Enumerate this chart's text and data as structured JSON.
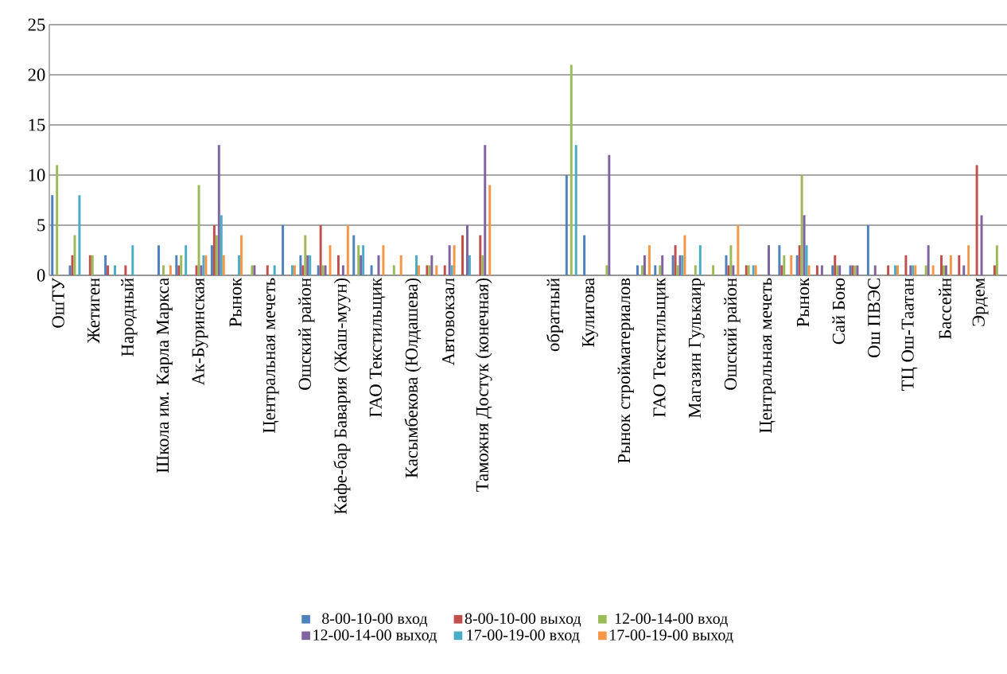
{
  "chart_data": {
    "type": "bar",
    "categories": [
      "ОшТУ",
      null,
      "Жетиген",
      null,
      "Народный",
      null,
      "Школа им. Карла Маркса",
      null,
      "Ак-Буринская",
      null,
      "Рынок",
      null,
      "Центральная мечеть",
      null,
      "Ошский район",
      null,
      "Кафе-бар Бавария (Жаш-муун)",
      null,
      "ГАО Текстильщик",
      null,
      "Касымбекова (Юлдашева)",
      null,
      "Автовокзал",
      null,
      "Таможня Достук (конечная)",
      null,
      null,
      null,
      "обратный",
      null,
      "Кулигова",
      null,
      "Рынок стройматериалов",
      null,
      "ГАО Текстильщик",
      null,
      "Магазин Гулькаир",
      null,
      "Ошский район",
      null,
      "Центральная мечеть",
      null,
      "Рынок",
      null,
      "Сай Бою",
      null,
      "Ош ПВЭС",
      null,
      "ТЦ Ош-Таатан",
      null,
      "Бассейн",
      null,
      "Эрдем",
      null
    ],
    "series": [
      {
        "name": "8-00-10-00 вход",
        "color": "#4f81bd",
        "values": [
          8,
          1,
          null,
          2,
          null,
          null,
          3,
          2,
          null,
          3,
          null,
          null,
          null,
          5,
          2,
          1,
          null,
          4,
          1,
          null,
          null,
          null,
          null,
          null,
          null,
          null,
          null,
          null,
          null,
          10,
          4,
          null,
          null,
          1,
          1,
          2,
          null,
          null,
          2,
          null,
          null,
          3,
          2,
          null,
          1,
          1,
          5,
          null,
          null,
          null,
          null,
          null,
          null,
          null
        ]
      },
      {
        "name": "8-00-10-00 выход",
        "color": "#c0504d",
        "values": [
          null,
          2,
          2,
          1,
          1,
          null,
          null,
          1,
          1,
          5,
          null,
          null,
          1,
          null,
          1,
          5,
          2,
          null,
          null,
          null,
          null,
          1,
          1,
          4,
          4,
          null,
          null,
          null,
          null,
          null,
          null,
          null,
          null,
          null,
          null,
          3,
          null,
          null,
          1,
          1,
          null,
          1,
          3,
          1,
          2,
          1,
          null,
          1,
          2,
          null,
          2,
          2,
          11,
          1
        ]
      },
      {
        "name": "12-00-14-00 вход",
        "color": "#9bbb59",
        "values": [
          11,
          4,
          2,
          null,
          null,
          null,
          1,
          2,
          9,
          4,
          null,
          1,
          null,
          null,
          4,
          1,
          null,
          3,
          null,
          1,
          null,
          1,
          null,
          null,
          2,
          null,
          null,
          null,
          null,
          21,
          null,
          1,
          null,
          1,
          1,
          1,
          1,
          1,
          3,
          1,
          null,
          2,
          10,
          null,
          1,
          1,
          null,
          null,
          null,
          1,
          1,
          null,
          null,
          3
        ]
      },
      {
        "name": "12-00-14-00 выход",
        "color": "#8064a2",
        "values": [
          null,
          null,
          null,
          null,
          null,
          null,
          null,
          null,
          1,
          13,
          null,
          1,
          null,
          null,
          2,
          1,
          1,
          2,
          2,
          null,
          null,
          2,
          3,
          5,
          13,
          null,
          null,
          null,
          null,
          null,
          null,
          12,
          null,
          2,
          2,
          2,
          null,
          null,
          1,
          null,
          3,
          null,
          6,
          1,
          1,
          1,
          1,
          null,
          1,
          3,
          1,
          1,
          6,
          null
        ]
      },
      {
        "name": "17-00-19-00 вход",
        "color": "#4bacc6",
        "values": [
          null,
          8,
          null,
          1,
          3,
          null,
          null,
          3,
          2,
          6,
          2,
          null,
          1,
          1,
          2,
          null,
          null,
          3,
          null,
          null,
          2,
          null,
          1,
          2,
          null,
          null,
          null,
          null,
          null,
          13,
          null,
          null,
          null,
          null,
          null,
          2,
          3,
          null,
          null,
          1,
          null,
          null,
          3,
          null,
          null,
          null,
          null,
          1,
          1,
          null,
          null,
          null,
          null,
          null
        ]
      },
      {
        "name": "17-00-19-00 выход",
        "color": "#f79646",
        "values": [
          null,
          null,
          null,
          null,
          null,
          null,
          1,
          null,
          2,
          2,
          4,
          null,
          null,
          1,
          null,
          3,
          5,
          null,
          3,
          2,
          1,
          1,
          3,
          null,
          9,
          null,
          null,
          null,
          null,
          null,
          null,
          null,
          null,
          3,
          null,
          4,
          null,
          null,
          5,
          1,
          null,
          2,
          1,
          null,
          null,
          null,
          null,
          1,
          1,
          1,
          2,
          3,
          null,
          null
        ]
      }
    ],
    "ylim": [
      0,
      25
    ],
    "yticks": [
      0,
      5,
      10,
      15,
      20,
      25
    ],
    "grid": "y",
    "legend": "bottom"
  }
}
